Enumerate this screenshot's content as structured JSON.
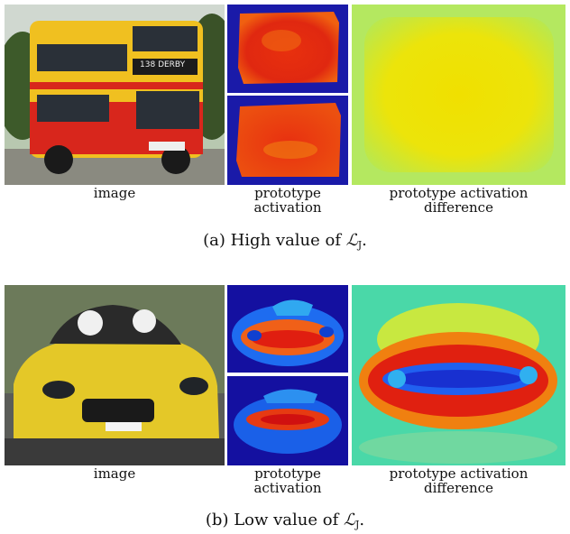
{
  "figure_a": {
    "labels": {
      "image": "image",
      "prototype_activation": "prototype\nactivation",
      "difference": "prototype activation\ndifference"
    },
    "caption_prefix": "(a) High value of ",
    "caption_symbol": "ℒ",
    "caption_subscript": "J",
    "caption_suffix": "."
  },
  "figure_b": {
    "labels": {
      "image": "image",
      "prototype_activation": "prototype\nactivation",
      "difference": "prototype activation\ndifference"
    },
    "caption_prefix": "(b) Low value of ",
    "caption_symbol": "ℒ",
    "caption_subscript": "J",
    "caption_suffix": "."
  },
  "bus_sign": {
    "route": "138",
    "destination": "DERBY"
  },
  "colors": {
    "heatmap_background": "#1a1aa8",
    "bus_yellow": "#f0c020",
    "bus_red": "#d8261c",
    "difference_yellow": "#e8e020",
    "car_yellow": "#e4c828"
  }
}
